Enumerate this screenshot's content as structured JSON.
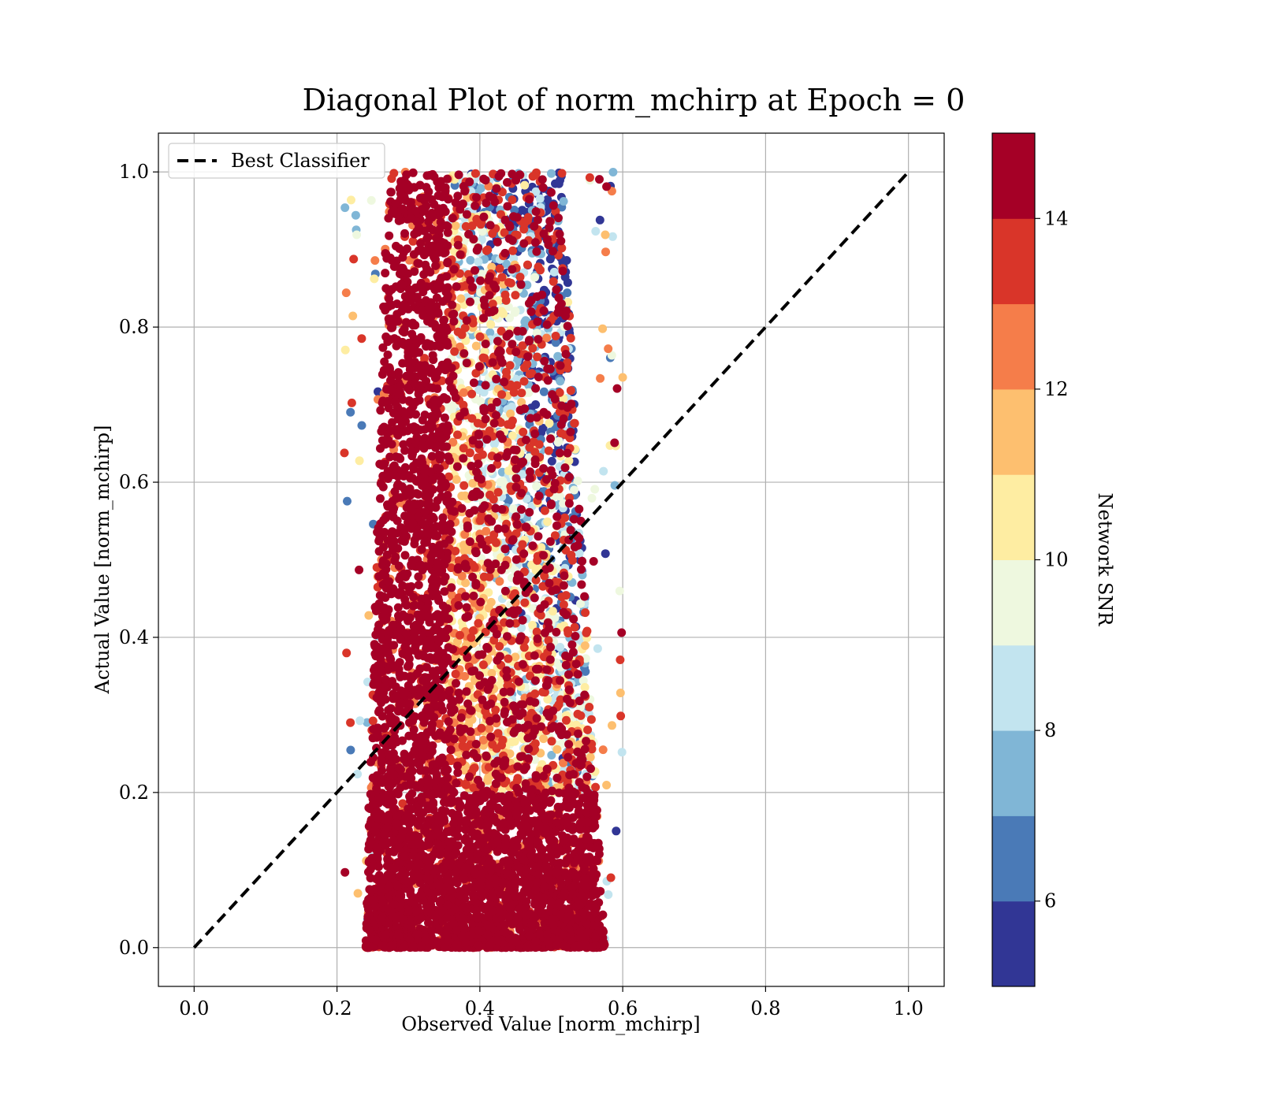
{
  "chart_data": {
    "type": "scatter",
    "title": "Diagonal Plot of norm_mchirp at Epoch = 0",
    "xlabel": "Observed Value [norm_mchirp]",
    "ylabel": "Actual Value [norm_mchirp]",
    "xlim": [
      -0.05,
      1.05
    ],
    "ylim": [
      -0.05,
      1.05
    ],
    "xticks": [
      "0.0",
      "0.2",
      "0.4",
      "0.6",
      "0.8",
      "1.0"
    ],
    "yticks": [
      "0.0",
      "0.2",
      "0.4",
      "0.6",
      "0.8",
      "1.0"
    ],
    "grid": true,
    "legend": {
      "position": "top-left",
      "entries": [
        {
          "label": "Best Classifier",
          "style": "dashed",
          "color": "#000000"
        }
      ]
    },
    "reference_line": {
      "name": "Best Classifier",
      "x": [
        0.0,
        1.0
      ],
      "y": [
        0.0,
        1.0
      ]
    },
    "colorbar": {
      "label": "Network SNR",
      "range": [
        5,
        15
      ],
      "ticks": [
        "6",
        "8",
        "10",
        "12",
        "14"
      ],
      "levels": [
        {
          "from": 5,
          "to": 6,
          "color": "#313695"
        },
        {
          "from": 6,
          "to": 7,
          "color": "#4a7ab7"
        },
        {
          "from": 7,
          "to": 8,
          "color": "#80b6d6"
        },
        {
          "from": 8,
          "to": 9,
          "color": "#c2e4ef"
        },
        {
          "from": 9,
          "to": 10,
          "color": "#eef8df"
        },
        {
          "from": 10,
          "to": 11,
          "color": "#feeda2"
        },
        {
          "from": 11,
          "to": 12,
          "color": "#fdbf6f"
        },
        {
          "from": 12,
          "to": 13,
          "color": "#f57d4a"
        },
        {
          "from": 13,
          "to": 14,
          "color": "#d93529"
        },
        {
          "from": 14,
          "to": 15,
          "color": "#a50026"
        }
      ]
    },
    "scatter_distribution": {
      "observed_range": [
        0.21,
        0.6
      ],
      "actual_range": [
        0.0,
        1.0
      ],
      "center_observed_at_actual_0": 0.4,
      "center_observed_at_actual_1": 0.33,
      "note_high_snr_dense_region": "high SNR points concentrated near observed 0.27-0.36 for high actual values, wider 0.25-0.57 near actual 0"
    }
  }
}
